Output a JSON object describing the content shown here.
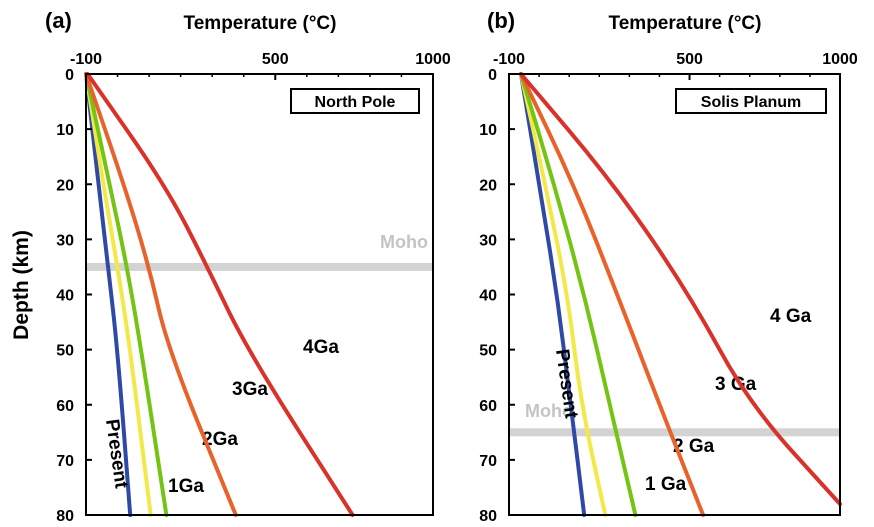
{
  "ylabel": "Depth (km)",
  "chart_data": [
    {
      "panel_label": "(a)",
      "type": "line",
      "xlabel": "Temperature (°C)",
      "xlim": [
        -100,
        1000
      ],
      "ylim": [
        0,
        80
      ],
      "y_inverted": true,
      "x_axis_position": "top",
      "xticks": [
        -100,
        500,
        1000
      ],
      "yticks": [
        0,
        10,
        20,
        30,
        40,
        50,
        60,
        70,
        80
      ],
      "box_label": "North Pole",
      "moho": {
        "label": "Moho",
        "depth": 35
      },
      "series": [
        {
          "name": "Present",
          "color": "#2f49a6",
          "label_angle": 82,
          "points": [
            [
              -100,
              0
            ],
            [
              -60,
              20
            ],
            [
              -30,
              35
            ],
            [
              0,
              50
            ],
            [
              40,
              80
            ]
          ]
        },
        {
          "name": "",
          "color": "#f3e84a",
          "points": [
            [
              -100,
              0
            ],
            [
              -45,
              20
            ],
            [
              0,
              35
            ],
            [
              40,
              50
            ],
            [
              105,
              80
            ]
          ]
        },
        {
          "name": "1Ga",
          "color": "#f3e84a",
          "points": [
            [
              -100,
              0
            ],
            [
              -45,
              20
            ],
            [
              0,
              35
            ],
            [
              40,
              50
            ],
            [
              105,
              80
            ]
          ]
        },
        {
          "name": "2Ga",
          "color": "#74c413",
          "points": [
            [
              -100,
              0
            ],
            [
              -25,
              20
            ],
            [
              30,
              35
            ],
            [
              75,
              50
            ],
            [
              155,
              80
            ]
          ]
        },
        {
          "name": "3Ga",
          "color": "#e8622c",
          "points": [
            [
              -100,
              0
            ],
            [
              20,
              20
            ],
            [
              100,
              35
            ],
            [
              160,
              50
            ],
            [
              375,
              80
            ]
          ]
        },
        {
          "name": "4Ga",
          "color": "#d9322a",
          "points": [
            [
              -95,
              0
            ],
            [
              150,
              20
            ],
            [
              285,
              35
            ],
            [
              410,
              50
            ],
            [
              745,
              80
            ]
          ]
        }
      ]
    },
    {
      "panel_label": "(b)",
      "type": "line",
      "xlabel": "Temperature (°C)",
      "xlim": [
        -100,
        1000
      ],
      "ylim": [
        0,
        80
      ],
      "y_inverted": true,
      "x_axis_position": "top",
      "xticks": [
        -100,
        500,
        1000
      ],
      "yticks": [
        0,
        10,
        20,
        30,
        40,
        50,
        60,
        70,
        80
      ],
      "box_label": "Solis Planum",
      "moho": {
        "label": "Moho",
        "depth": 65
      },
      "series": [
        {
          "name": "Present",
          "color": "#2f49a6",
          "label_angle": 82,
          "points": [
            [
              -60,
              0
            ],
            [
              0,
              20
            ],
            [
              60,
              40
            ],
            [
              105,
              60
            ],
            [
              150,
              80
            ]
          ]
        },
        {
          "name": "1 Ga",
          "color": "#f3e84a",
          "points": [
            [
              -60,
              0
            ],
            [
              20,
              20
            ],
            [
              95,
              40
            ],
            [
              140,
              60
            ],
            [
              220,
              80
            ]
          ]
        },
        {
          "name": "2 Ga",
          "color": "#74c413",
          "points": [
            [
              -60,
              0
            ],
            [
              50,
              20
            ],
            [
              150,
              40
            ],
            [
              235,
              60
            ],
            [
              320,
              80
            ]
          ]
        },
        {
          "name": "3 Ga",
          "color": "#e8622c",
          "points": [
            [
              -60,
              0
            ],
            [
              115,
              20
            ],
            [
              260,
              40
            ],
            [
              400,
              60
            ],
            [
              545,
              80
            ]
          ]
        },
        {
          "name": "4 Ga",
          "color": "#d9322a",
          "points": [
            [
              -60,
              0
            ],
            [
              250,
              20
            ],
            [
              500,
              40
            ],
            [
              700,
              60
            ],
            [
              1000,
              78
            ]
          ]
        }
      ]
    }
  ]
}
